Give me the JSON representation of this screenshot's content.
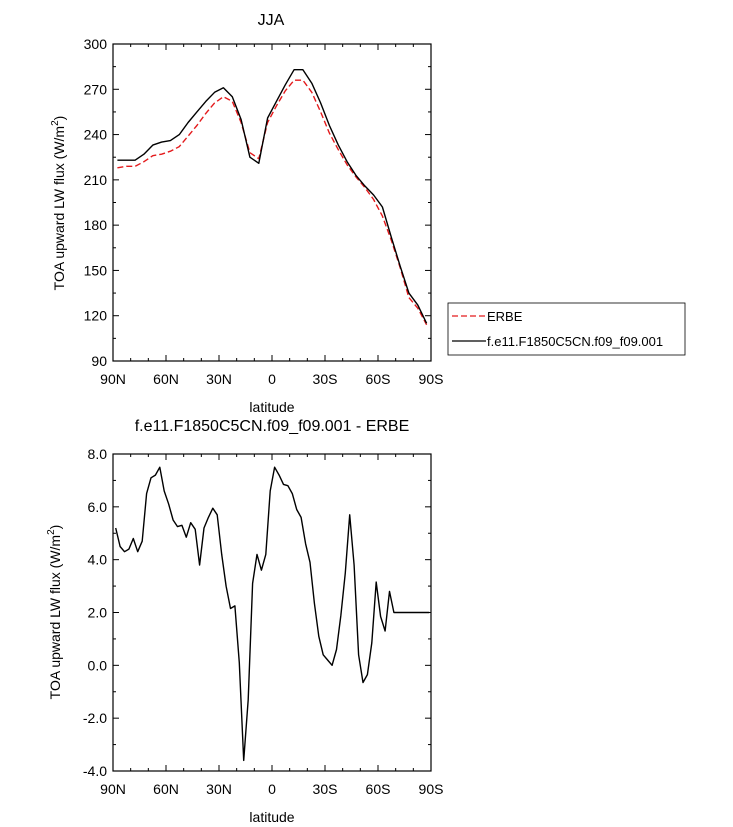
{
  "chart_data": [
    {
      "type": "line",
      "title": "JJA",
      "xlabel": "latitude",
      "ylabel": "TOA upward LW flux (W/m",
      "ylabel_sup": "2",
      "ylabel_close": ")",
      "xlim": [
        -90,
        90
      ],
      "ylim": [
        90,
        300
      ],
      "xticks": [
        -90,
        -60,
        -30,
        0,
        30,
        60,
        90
      ],
      "xtick_labels": [
        "90N",
        "60N",
        "30N",
        "0",
        "30S",
        "60S",
        "90S"
      ],
      "yticks": [
        90,
        120,
        150,
        180,
        210,
        240,
        270,
        300
      ],
      "ytick_labels": [
        "90",
        "120",
        "150",
        "180",
        "210",
        "240",
        "270",
        "300"
      ],
      "grid": false,
      "legend_position": "outside-right",
      "series": [
        {
          "name": "ERBE",
          "color": "#e41a1c",
          "dash": "dashed",
          "x": [
            -87.5,
            -82.5,
            -77.5,
            -72.5,
            -67.5,
            -62.5,
            -57.5,
            -52.5,
            -47.5,
            -42.5,
            -37.5,
            -32.5,
            -27.5,
            -22.5,
            -17.5,
            -12.5,
            -7.5,
            -2.5,
            2.5,
            7.5,
            12.5,
            17.5,
            22.5,
            27.5,
            32.5,
            37.5,
            42.5,
            47.5,
            52.5,
            57.5,
            62.5,
            67.5,
            72.5,
            77.5,
            82.5,
            87.5
          ],
          "y": [
            218,
            219,
            219,
            222,
            226,
            227,
            229,
            232,
            239,
            246,
            254,
            261,
            265,
            262,
            248,
            228,
            224,
            248,
            259,
            269,
            276,
            276,
            268,
            255,
            241,
            230,
            220,
            212,
            205,
            197,
            186,
            170,
            152,
            132,
            125,
            114
          ]
        },
        {
          "name": "f.e11.F1850C5CN.f09_f09.001",
          "color": "#000000",
          "dash": "solid",
          "x": [
            -87.5,
            -82.5,
            -77.5,
            -72.5,
            -67.5,
            -62.5,
            -57.5,
            -52.5,
            -47.5,
            -42.5,
            -37.5,
            -32.5,
            -27.5,
            -22.5,
            -17.5,
            -12.5,
            -7.5,
            -2.5,
            2.5,
            7.5,
            12.5,
            17.5,
            22.5,
            27.5,
            32.5,
            37.5,
            42.5,
            47.5,
            52.5,
            57.5,
            62.5,
            67.5,
            72.5,
            77.5,
            82.5,
            87.5
          ],
          "y": [
            223,
            223,
            223,
            227,
            233,
            235,
            236,
            240,
            248,
            255,
            262,
            268,
            271,
            265,
            250,
            225,
            221,
            251,
            262,
            273,
            283,
            283,
            274,
            261,
            246,
            233,
            222,
            213,
            206,
            200,
            192,
            172,
            153,
            135,
            127,
            115
          ]
        }
      ]
    },
    {
      "type": "line",
      "title": "f.e11.F1850C5CN.f09_f09.001 - ERBE",
      "xlabel": "latitude",
      "ylabel": "TOA upward LW flux (W/m",
      "ylabel_sup": "2",
      "ylabel_close": ")",
      "xlim": [
        -90,
        90
      ],
      "ylim": [
        -4,
        8
      ],
      "xticks": [
        -90,
        -60,
        -30,
        0,
        30,
        60,
        90
      ],
      "xtick_labels": [
        "90N",
        "60N",
        "30N",
        "0",
        "30S",
        "60S",
        "90S"
      ],
      "yticks": [
        -4,
        -2,
        0,
        2,
        4,
        6,
        8
      ],
      "ytick_labels": [
        "-4.0",
        "-2.0",
        "0.0",
        "2.0",
        "4.0",
        "6.0",
        "8.0"
      ],
      "grid": false,
      "series": [
        {
          "color": "#000000",
          "x": [
            -88.5,
            -86,
            -83.5,
            -81,
            -78.5,
            -76,
            -73.5,
            -71,
            -68.5,
            -66,
            -63.5,
            -61,
            -58.5,
            -56,
            -53.5,
            -51,
            -48.5,
            -46,
            -43.5,
            -41,
            -38.5,
            -36,
            -33.5,
            -31,
            -28.5,
            -26,
            -23.5,
            -21,
            -18.5,
            -16,
            -13.5,
            -11,
            -8.5,
            -6,
            -3.5,
            -1,
            1.5,
            4,
            6.5,
            9,
            11.5,
            14,
            16.5,
            19,
            21.5,
            24,
            26.5,
            29,
            31.5,
            34,
            36.5,
            39,
            41.5,
            44,
            46.5,
            49,
            51.5,
            54,
            56.5,
            59,
            61.5,
            64,
            66.5,
            69,
            71.5,
            74,
            76.5,
            79,
            81.5,
            84,
            86.5,
            89
          ],
          "y": [
            5.2,
            4.5,
            4.3,
            4.4,
            4.8,
            4.3,
            4.7,
            6.5,
            7.1,
            7.2,
            7.5,
            6.6,
            6.1,
            5.5,
            5.25,
            5.3,
            4.85,
            5.4,
            5.15,
            3.8,
            5.2,
            5.6,
            5.95,
            5.7,
            4.2,
            3.0,
            2.15,
            2.25,
            0.1,
            -3.6,
            -1.3,
            3.1,
            4.2,
            3.6,
            4.2,
            6.6,
            7.5,
            7.2,
            6.85,
            6.8,
            6.5,
            5.9,
            5.6,
            4.6,
            3.9,
            2.35,
            1.1,
            0.4,
            0.2,
            0.0,
            0.6,
            1.9,
            3.5,
            5.7,
            3.8,
            0.4,
            -0.65,
            -0.35,
            0.85,
            3.15,
            1.85,
            1.3,
            2.8,
            2.0,
            2.0,
            2.0,
            2.0,
            2.0,
            2.0,
            2.0,
            2.0,
            2.0
          ]
        }
      ]
    }
  ]
}
